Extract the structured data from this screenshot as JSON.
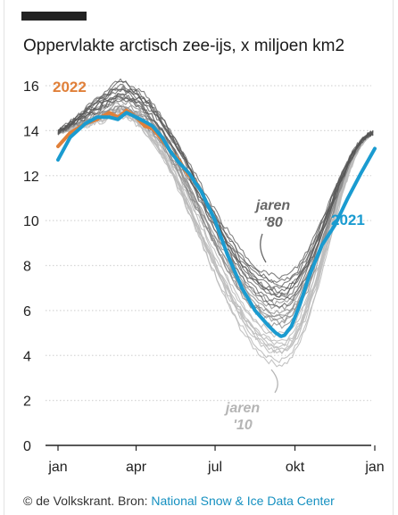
{
  "title": "Oppervlakte arctisch zee-ijs, x miljoen km2",
  "footer": {
    "credit": "© de Volkskrant. Bron: ",
    "source": "National Snow & Ice Data Center"
  },
  "colors": {
    "series_2021": "#1a9bd0",
    "series_2022": "#e0803a",
    "archive_dark": "#555555",
    "archive_light": "#bdbdbd",
    "grid": "#d6d6d6",
    "axis": "#222222",
    "label_80": "#666666",
    "label_10": "#b5b5b5"
  },
  "chart_data": {
    "type": "line",
    "title": "Oppervlakte arctisch zee-ijs, x miljoen km2",
    "xlabel": "",
    "ylabel": "",
    "ylim": [
      0,
      16
    ],
    "yticks": [
      0,
      2,
      4,
      6,
      8,
      10,
      12,
      14,
      16
    ],
    "xticks": [
      {
        "label": "jan",
        "day": 1
      },
      {
        "label": "apr",
        "day": 91
      },
      {
        "label": "jul",
        "day": 182
      },
      {
        "label": "okt",
        "day": 274
      },
      {
        "label": "jan",
        "day": 366
      }
    ],
    "grid": true,
    "annotations": [
      {
        "text": "jaren '80",
        "target": "1980s"
      },
      {
        "text": "jaren '10",
        "target": "2010s"
      }
    ],
    "series": [
      {
        "name": "2022",
        "color": "#e0803a",
        "x": [
          1,
          15,
          32,
          46,
          60,
          70,
          80,
          91,
          101,
          110,
          121,
          130,
          140,
          150,
          160
        ],
        "y": [
          13.3,
          13.9,
          14.3,
          14.5,
          14.8,
          14.6,
          14.9,
          14.6,
          14.2,
          14.1,
          13.6,
          13.1,
          12.7,
          12.1,
          11.7
        ]
      },
      {
        "name": "2021",
        "color": "#1a9bd0",
        "x": [
          1,
          15,
          32,
          46,
          60,
          70,
          80,
          91,
          101,
          110,
          121,
          130,
          140,
          152,
          166,
          182,
          196,
          213,
          228,
          244,
          252,
          258,
          262,
          270,
          280,
          290,
          305,
          320,
          335,
          350,
          366
        ],
        "y": [
          12.7,
          13.7,
          14.3,
          14.6,
          14.6,
          14.5,
          14.8,
          14.6,
          14.4,
          14.2,
          13.7,
          13.1,
          12.6,
          12.1,
          11.3,
          10.0,
          8.5,
          7.0,
          6.0,
          5.3,
          5.0,
          4.85,
          4.9,
          5.3,
          6.3,
          7.5,
          8.9,
          9.8,
          11.0,
          12.1,
          13.2
        ]
      }
    ],
    "archive": {
      "dark_1980s": [
        {
          "ymax": 15.7,
          "ymin": 7.3
        },
        {
          "ymax": 15.9,
          "ymin": 7.0
        },
        {
          "ymax": 16.2,
          "ymin": 6.8
        },
        {
          "ymax": 15.5,
          "ymin": 6.6
        },
        {
          "ymax": 15.8,
          "ymin": 7.2
        },
        {
          "ymax": 16.0,
          "ymin": 6.4
        },
        {
          "ymax": 15.4,
          "ymin": 6.9
        },
        {
          "ymax": 15.6,
          "ymin": 6.2
        },
        {
          "ymax": 15.9,
          "ymin": 7.5
        },
        {
          "ymax": 16.1,
          "ymin": 6.7
        }
      ],
      "mid_1990s_2000s": [
        {
          "ymax": 15.3,
          "ymin": 6.1
        },
        {
          "ymax": 15.1,
          "ymin": 5.9
        },
        {
          "ymax": 15.6,
          "ymin": 6.3
        },
        {
          "ymax": 15.4,
          "ymin": 5.8
        },
        {
          "ymax": 15.2,
          "ymin": 5.6
        },
        {
          "ymax": 15.0,
          "ymin": 5.5
        },
        {
          "ymax": 15.5,
          "ymin": 5.3
        },
        {
          "ymax": 14.9,
          "ymin": 5.7
        }
      ],
      "light_2010s": [
        {
          "ymax": 15.0,
          "ymin": 4.4
        },
        {
          "ymax": 14.8,
          "ymin": 3.6
        },
        {
          "ymax": 14.9,
          "ymin": 4.9
        },
        {
          "ymax": 15.1,
          "ymin": 5.0
        },
        {
          "ymax": 14.7,
          "ymin": 4.6
        },
        {
          "ymax": 14.8,
          "ymin": 4.3
        },
        {
          "ymax": 14.9,
          "ymin": 4.1
        },
        {
          "ymax": 14.6,
          "ymin": 4.5
        },
        {
          "ymax": 14.8,
          "ymin": 4.2
        },
        {
          "ymax": 14.7,
          "ymin": 3.8
        }
      ]
    }
  }
}
